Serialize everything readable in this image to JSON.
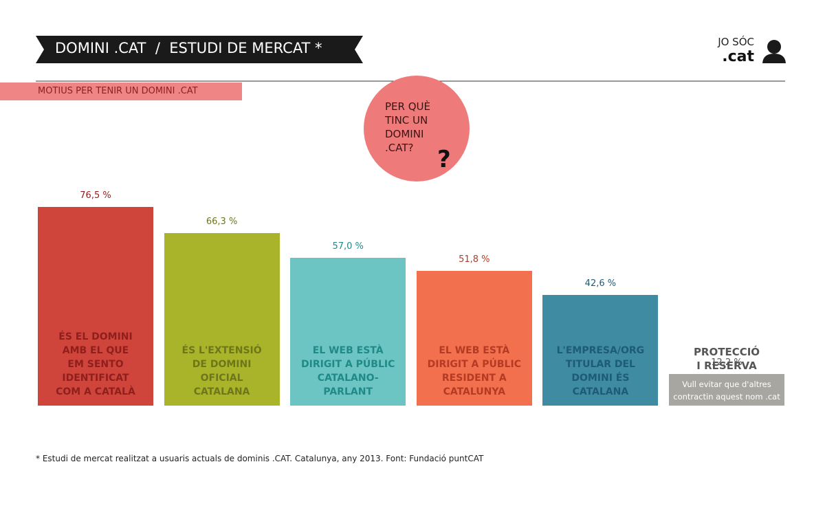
{
  "header": {
    "title": "DOMINI .CAT  /  ESTUDI DE MERCAT *",
    "brand": "JO SÓC",
    "brand_domain": ".cat",
    "section": "MOTIUS PER TENIR UN DOMINI .CAT",
    "question": "PER QUÈ\nTINC UN\nDOMINI\n.CAT?",
    "question_mark": "?"
  },
  "chart_data": {
    "type": "bar",
    "categories": [
      "ÉS EL DOMINI\nAMB EL QUE\nEM SENTO\nIDENTIFICAT\nCOM A CATALÀ",
      "ÉS L'EXTENSIÓ\nDE DOMINI\nOFICIAL\nCATALANA",
      "EL WEB ESTÀ\nDIRIGIT A PÚBLIC\nCATALANO-\nPARLANT",
      "EL WEB ESTÀ\nDIRIGIT A PÚBLIC\nRESIDENT A\nCATALUNYA",
      "L'EMPRESA/ORG\nTITULAR DEL\nDOMINI ÉS\nCATALANA",
      "PROTECCIÓ\nI RESERVA"
    ],
    "values": [
      76.5,
      66.3,
      57.0,
      51.8,
      42.6,
      12.2
    ],
    "value_labels": [
      "76,5 %",
      "66,3 %",
      "57,0 %",
      "51,8 %",
      "42,6 %",
      "12,2 %"
    ],
    "bar_notes": [
      null,
      null,
      null,
      null,
      null,
      "Vull evitar que d'altres\ncontractin aquest nom .cat"
    ],
    "colors": [
      "#d0453b",
      "#a9b42b",
      "#6cc5c2",
      "#f2704d",
      "#3f8ba1",
      "#a8a6a0"
    ],
    "text_colors": [
      "#8e1f1c",
      "#6e761a",
      "#1f8a87",
      "#b43a24",
      "#1d5c74",
      "#555555"
    ],
    "ylim": [
      0,
      80
    ],
    "footnote": "* Estudi de mercat realitzat a usuaris actuals de dominis .CAT. Catalunya, any 2013. Font: Fundació puntCAT"
  }
}
